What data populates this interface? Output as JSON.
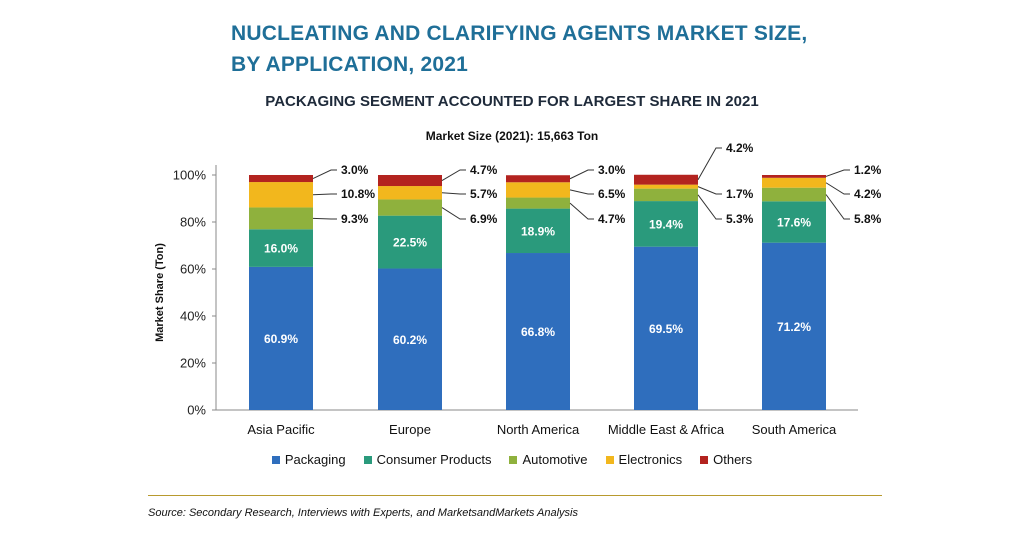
{
  "title_line1": "NUCLEATING AND CLARIFYING AGENTS MARKET SIZE,",
  "title_line2": "BY APPLICATION, 2021",
  "subtitle": "PACKAGING SEGMENT ACCOUNTED FOR LARGEST SHARE IN 2021",
  "size_note": "Market Size (2021): 15,663 Ton",
  "source": "Source: Secondary Research, Interviews with Experts, and MarketsandMarkets Analysis",
  "chart_data": {
    "type": "bar",
    "stacked": true,
    "categories": [
      "Asia Pacific",
      "Europe",
      "North America",
      "Middle East & Africa",
      "South America"
    ],
    "ylabel": "Market Share (Ton)",
    "ylim": [
      0,
      100
    ],
    "yticks": [
      "0%",
      "20%",
      "40%",
      "60%",
      "80%",
      "100%"
    ],
    "grid": false,
    "legend_position": "bottom",
    "series": [
      {
        "name": "Packaging",
        "color": "#2f6ebd",
        "values": [
          60.9,
          60.2,
          66.8,
          69.5,
          71.2
        ],
        "labels": [
          "60.9%",
          "60.2%",
          "66.8%",
          "69.5%",
          "71.2%"
        ]
      },
      {
        "name": "Consumer Products",
        "color": "#2a9a7c",
        "values": [
          16.0,
          22.5,
          18.9,
          19.4,
          17.6
        ],
        "labels": [
          "16.0%",
          "22.5%",
          "18.9%",
          "19.4%",
          "17.6%"
        ]
      },
      {
        "name": "Automotive",
        "color": "#8fb13d",
        "values": [
          9.3,
          6.9,
          4.7,
          5.3,
          5.8
        ],
        "labels": [
          "9.3%",
          "6.9%",
          "4.7%",
          "5.3%",
          "5.8%"
        ]
      },
      {
        "name": "Electronics",
        "color": "#f2b71d",
        "values": [
          10.8,
          5.7,
          6.5,
          1.7,
          4.2
        ],
        "labels": [
          "10.8%",
          "5.7%",
          "6.5%",
          "1.7%",
          "4.2%"
        ]
      },
      {
        "name": "Others",
        "color": "#b3231f",
        "values": [
          3.0,
          4.7,
          3.0,
          4.2,
          1.2
        ],
        "labels": [
          "3.0%",
          "4.7%",
          "3.0%",
          "4.2%",
          "1.2%"
        ]
      }
    ]
  }
}
